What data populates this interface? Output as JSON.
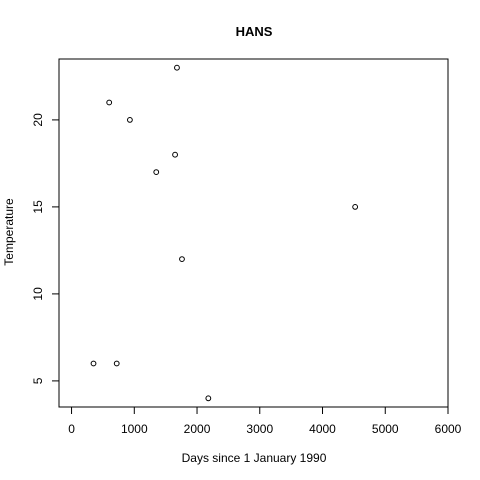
{
  "chart_data": {
    "type": "scatter",
    "title": "HANS",
    "xlabel": "Days since 1 January 1990",
    "ylabel": "Temperature",
    "xlim": [
      -200,
      6000
    ],
    "ylim": [
      3.5,
      23.5
    ],
    "xticks": [
      0,
      1000,
      2000,
      3000,
      4000,
      5000,
      6000
    ],
    "yticks": [
      5,
      10,
      15,
      20
    ],
    "grid": false,
    "points": [
      {
        "x": 350,
        "y": 6
      },
      {
        "x": 600,
        "y": 21
      },
      {
        "x": 720,
        "y": 6
      },
      {
        "x": 930,
        "y": 20
      },
      {
        "x": 1350,
        "y": 17
      },
      {
        "x": 1650,
        "y": 18
      },
      {
        "x": 1680,
        "y": 23
      },
      {
        "x": 1760,
        "y": 12
      },
      {
        "x": 2180,
        "y": 4
      },
      {
        "x": 4520,
        "y": 15
      }
    ]
  }
}
